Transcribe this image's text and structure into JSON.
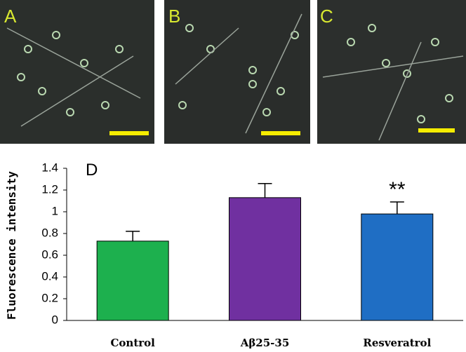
{
  "panels": [
    {
      "label": "A"
    },
    {
      "label": "B"
    },
    {
      "label": "C"
    }
  ],
  "chart_data": {
    "type": "bar",
    "panel_label": "D",
    "y_label": "Fluorescence intensity",
    "categories": [
      "Control",
      "Aβ25-35",
      "Resveratrol"
    ],
    "values": [
      0.73,
      1.13,
      0.98
    ],
    "errors": [
      0.09,
      0.13,
      0.11
    ],
    "colors": [
      "#1db04e",
      "#7030a0",
      "#1f6ec4"
    ],
    "significance_labels": [
      null,
      null,
      "**"
    ],
    "ylim": [
      0,
      1.4
    ],
    "yticks": [
      0,
      0.2,
      0.4,
      0.6,
      0.8,
      1,
      1.2,
      1.4
    ]
  }
}
